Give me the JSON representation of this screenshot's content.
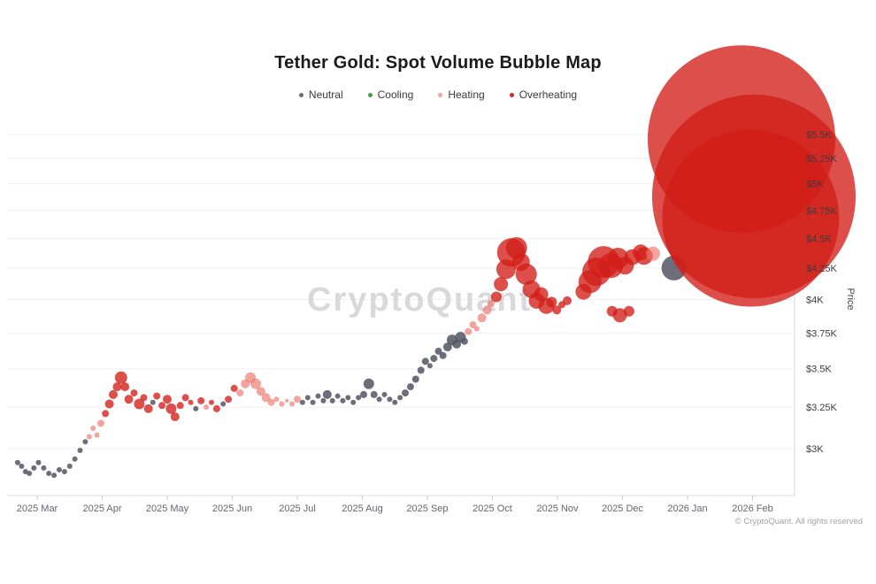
{
  "title": "Tether Gold: Spot Volume Bubble Map",
  "watermark": "CryptoQuant",
  "copyright": "© CryptoQuant. All rights reserved",
  "legend": {
    "items": [
      {
        "label": "Neutral",
        "key": "n"
      },
      {
        "label": "Cooling",
        "key": "c"
      },
      {
        "label": "Heating",
        "key": "h"
      },
      {
        "label": "Overheating",
        "key": "o"
      }
    ]
  },
  "colors": {
    "bubble_fill": {
      "n": "rgba(85,85,100,0.85)",
      "c": "rgba(67,160,71,0.85)",
      "h": "rgba(235,115,105,0.65)",
      "o": "rgba(210,30,24,0.78)"
    },
    "legend_dots": {
      "n": "#6e6e78",
      "c": "#43a047",
      "h": "#f0a39d",
      "o": "#cc2d26"
    },
    "grid": "#f0f0f2",
    "axis_line": "#d8d8dc",
    "tick_mark": "#c9c9ce",
    "x_tick_label": "#66666e",
    "y_tick_label": "#3c3c40",
    "watermark": "#d9d9dc",
    "title_text": "#1b1b1e"
  },
  "chart_data": {
    "type": "scatter",
    "subtype": "bubble",
    "title": "Tether Gold: Spot Volume Bubble Map",
    "xlabel": "",
    "ylabel": "Price",
    "y_scale": "log",
    "y_unit": "USD (thousands)",
    "y_range_usd_k": [
      2.75,
      5.6
    ],
    "grid": "horizontal",
    "legend_position": "top",
    "legend": [
      "Neutral",
      "Cooling",
      "Heating",
      "Overheating"
    ],
    "x_ticks": [
      "2025 Mar",
      "2025 Apr",
      "2025 May",
      "2025 Jun",
      "2025 Jul",
      "2025 Aug",
      "2025 Sep",
      "2025 Oct",
      "2025 Nov",
      "2025 Dec",
      "2026 Jan",
      "2026 Feb"
    ],
    "y_ticks": {
      "labels": [
        "$5.5K",
        "$5.25K",
        "$5K",
        "$4.75K",
        "$4.5K",
        "$4.25K",
        "$4K",
        "$3.75K",
        "$3.5K",
        "$3.25K",
        "$3K"
      ],
      "values_usd_k": [
        5.5,
        5.25,
        5,
        4.75,
        4.5,
        4.25,
        4,
        3.75,
        3.5,
        3.25,
        3
      ]
    },
    "point_fields": [
      "months_after_2025_mar_tick",
      "price_usd_k",
      "bubble_radius_px",
      "category n=Neutral c=Cooling h=Heating o=Overheating"
    ],
    "points": [
      [
        -0.3,
        2.92,
        3,
        "n"
      ],
      [
        -0.24,
        2.9,
        3,
        "n"
      ],
      [
        -0.18,
        2.87,
        3,
        "n"
      ],
      [
        -0.12,
        2.86,
        3,
        "n"
      ],
      [
        -0.05,
        2.89,
        3,
        "n"
      ],
      [
        0.02,
        2.92,
        3,
        "n"
      ],
      [
        0.1,
        2.89,
        3,
        "n"
      ],
      [
        0.18,
        2.86,
        3,
        "n"
      ],
      [
        0.26,
        2.85,
        3,
        "n"
      ],
      [
        0.34,
        2.88,
        3,
        "n"
      ],
      [
        0.42,
        2.87,
        3,
        "n"
      ],
      [
        0.5,
        2.9,
        3,
        "n"
      ],
      [
        0.58,
        2.94,
        3,
        "n"
      ],
      [
        0.66,
        2.99,
        3,
        "n"
      ],
      [
        0.74,
        3.04,
        3,
        "n"
      ],
      [
        0.8,
        3.07,
        3,
        "h"
      ],
      [
        0.86,
        3.12,
        3,
        "h"
      ],
      [
        0.92,
        3.08,
        3,
        "h"
      ],
      [
        0.98,
        3.15,
        4,
        "h"
      ],
      [
        1.05,
        3.21,
        4,
        "o"
      ],
      [
        1.11,
        3.27,
        5,
        "o"
      ],
      [
        1.17,
        3.33,
        5,
        "o"
      ],
      [
        1.23,
        3.38,
        5,
        "o"
      ],
      [
        1.29,
        3.44,
        7,
        "o"
      ],
      [
        1.35,
        3.38,
        5,
        "o"
      ],
      [
        1.41,
        3.3,
        5,
        "o"
      ],
      [
        1.49,
        3.34,
        4,
        "o"
      ],
      [
        1.57,
        3.27,
        6,
        "o"
      ],
      [
        1.64,
        3.31,
        4,
        "o"
      ],
      [
        1.71,
        3.24,
        5,
        "o"
      ],
      [
        1.78,
        3.28,
        3,
        "n"
      ],
      [
        1.84,
        3.32,
        4,
        "o"
      ],
      [
        1.92,
        3.26,
        4,
        "o"
      ],
      [
        2.0,
        3.3,
        5,
        "o"
      ],
      [
        2.06,
        3.24,
        6,
        "o"
      ],
      [
        2.12,
        3.19,
        5,
        "o"
      ],
      [
        2.2,
        3.26,
        4,
        "o"
      ],
      [
        2.28,
        3.31,
        4,
        "o"
      ],
      [
        2.36,
        3.28,
        3,
        "o"
      ],
      [
        2.44,
        3.24,
        3,
        "n"
      ],
      [
        2.52,
        3.29,
        4,
        "o"
      ],
      [
        2.6,
        3.25,
        3,
        "h"
      ],
      [
        2.68,
        3.28,
        3,
        "o"
      ],
      [
        2.76,
        3.24,
        4,
        "o"
      ],
      [
        2.86,
        3.27,
        3,
        "n"
      ],
      [
        2.94,
        3.3,
        4,
        "o"
      ],
      [
        3.03,
        3.37,
        4,
        "o"
      ],
      [
        3.12,
        3.34,
        4,
        "h"
      ],
      [
        3.2,
        3.4,
        5,
        "h"
      ],
      [
        3.28,
        3.44,
        6,
        "h"
      ],
      [
        3.36,
        3.4,
        6,
        "h"
      ],
      [
        3.44,
        3.35,
        5,
        "h"
      ],
      [
        3.52,
        3.31,
        5,
        "h"
      ],
      [
        3.6,
        3.28,
        4,
        "h"
      ],
      [
        3.68,
        3.3,
        3,
        "h"
      ],
      [
        3.76,
        3.27,
        3,
        "h"
      ],
      [
        3.84,
        3.29,
        2,
        "h"
      ],
      [
        3.92,
        3.27,
        3,
        "h"
      ],
      [
        4.0,
        3.3,
        4,
        "h"
      ],
      [
        4.08,
        3.28,
        3,
        "n"
      ],
      [
        4.16,
        3.31,
        3,
        "n"
      ],
      [
        4.24,
        3.28,
        3,
        "n"
      ],
      [
        4.32,
        3.32,
        3,
        "n"
      ],
      [
        4.4,
        3.29,
        3,
        "n"
      ],
      [
        4.46,
        3.33,
        5,
        "n"
      ],
      [
        4.54,
        3.29,
        3,
        "n"
      ],
      [
        4.62,
        3.32,
        3,
        "n"
      ],
      [
        4.7,
        3.29,
        3,
        "n"
      ],
      [
        4.78,
        3.31,
        3,
        "n"
      ],
      [
        4.86,
        3.28,
        3,
        "n"
      ],
      [
        4.94,
        3.31,
        3,
        "n"
      ],
      [
        5.02,
        3.33,
        4,
        "n"
      ],
      [
        5.1,
        3.4,
        6,
        "n"
      ],
      [
        5.18,
        3.33,
        4,
        "n"
      ],
      [
        5.26,
        3.3,
        3,
        "n"
      ],
      [
        5.34,
        3.33,
        3,
        "n"
      ],
      [
        5.42,
        3.3,
        3,
        "n"
      ],
      [
        5.5,
        3.28,
        3,
        "n"
      ],
      [
        5.58,
        3.31,
        3,
        "n"
      ],
      [
        5.66,
        3.34,
        4,
        "n"
      ],
      [
        5.74,
        3.38,
        4,
        "n"
      ],
      [
        5.82,
        3.43,
        4,
        "n"
      ],
      [
        5.9,
        3.49,
        4,
        "n"
      ],
      [
        5.97,
        3.55,
        4,
        "n"
      ],
      [
        6.04,
        3.52,
        3,
        "n"
      ],
      [
        6.1,
        3.57,
        4,
        "n"
      ],
      [
        6.17,
        3.62,
        4,
        "n"
      ],
      [
        6.24,
        3.59,
        4,
        "n"
      ],
      [
        6.31,
        3.65,
        5,
        "n"
      ],
      [
        6.38,
        3.7,
        6,
        "n"
      ],
      [
        6.45,
        3.67,
        5,
        "n"
      ],
      [
        6.51,
        3.72,
        6,
        "n"
      ],
      [
        6.57,
        3.69,
        4,
        "n"
      ],
      [
        6.63,
        3.76,
        4,
        "h"
      ],
      [
        6.7,
        3.81,
        4,
        "h"
      ],
      [
        6.76,
        3.78,
        3,
        "h"
      ],
      [
        6.84,
        3.86,
        5,
        "h"
      ],
      [
        6.92,
        3.92,
        5,
        "h"
      ],
      [
        6.98,
        3.97,
        4,
        "h"
      ],
      [
        7.06,
        4.02,
        6,
        "o"
      ],
      [
        7.13,
        4.12,
        8,
        "o"
      ],
      [
        7.21,
        4.24,
        11,
        "o"
      ],
      [
        7.29,
        4.38,
        16,
        "o"
      ],
      [
        7.37,
        4.42,
        12,
        "o"
      ],
      [
        7.44,
        4.3,
        10,
        "o"
      ],
      [
        7.52,
        4.2,
        12,
        "o"
      ],
      [
        7.6,
        4.08,
        10,
        "o"
      ],
      [
        7.68,
        3.99,
        9,
        "o"
      ],
      [
        7.75,
        4.04,
        8,
        "o"
      ],
      [
        7.83,
        3.95,
        9,
        "o"
      ],
      [
        7.91,
        3.98,
        6,
        "o"
      ],
      [
        7.99,
        3.92,
        5,
        "o"
      ],
      [
        8.07,
        3.96,
        4,
        "o"
      ],
      [
        8.15,
        3.99,
        5,
        "o"
      ],
      [
        8.4,
        4.06,
        9,
        "o"
      ],
      [
        8.5,
        4.14,
        13,
        "o"
      ],
      [
        8.6,
        4.22,
        16,
        "o"
      ],
      [
        8.71,
        4.3,
        18,
        "o"
      ],
      [
        8.82,
        4.27,
        14,
        "o"
      ],
      [
        8.84,
        3.91,
        6,
        "o"
      ],
      [
        8.93,
        4.33,
        12,
        "o"
      ],
      [
        8.96,
        3.88,
        8,
        "o"
      ],
      [
        9.04,
        4.27,
        10,
        "o"
      ],
      [
        9.1,
        3.91,
        6,
        "o"
      ],
      [
        9.15,
        4.34,
        9,
        "o"
      ],
      [
        9.28,
        4.38,
        9,
        "o"
      ],
      [
        9.33,
        4.35,
        10,
        "o"
      ],
      [
        9.47,
        4.37,
        8,
        "h"
      ],
      [
        9.79,
        4.25,
        14,
        "n"
      ],
      [
        10.83,
        5.45,
        106,
        "o"
      ],
      [
        10.97,
        4.68,
        100,
        "o"
      ],
      [
        11.02,
        4.88,
        115,
        "o"
      ]
    ]
  }
}
